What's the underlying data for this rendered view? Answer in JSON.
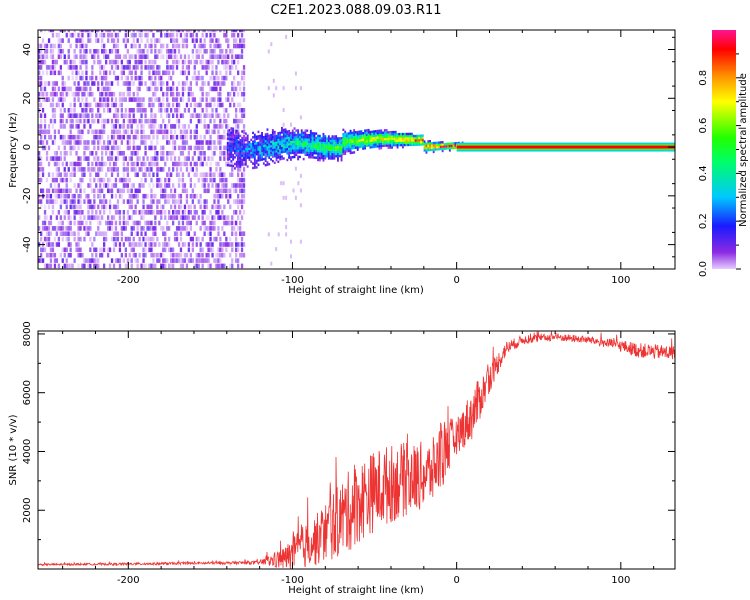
{
  "title": "C2E1.2023.088.09.03.R11",
  "chart_data": [
    {
      "type": "heatmap",
      "xlabel": "Height of straight line (km)",
      "ylabel": "Frequency (Hz)",
      "xlim": [
        -255,
        133
      ],
      "ylim": [
        -50,
        48
      ],
      "xticks": [
        -200,
        -100,
        0,
        100
      ],
      "yticks": [
        40,
        20,
        0,
        -20,
        -40
      ],
      "colorbar": {
        "label": "Normalized spectral amplitude",
        "range": [
          0,
          1
        ],
        "ticks": [
          0.0,
          0.2,
          0.4,
          0.6,
          0.8
        ]
      },
      "noise_region_x": [
        -255,
        -115
      ],
      "signal_onset_x": -140,
      "signal_converges_x": 0,
      "signal_frequency_hz": 0
    },
    {
      "type": "line",
      "xlabel": "Height of straight line (km)",
      "ylabel": "SNR (10 * v/v)",
      "xlim": [
        -255,
        133
      ],
      "ylim": [
        0,
        8100
      ],
      "xticks": [
        -200,
        -100,
        0,
        100
      ],
      "yticks": [
        2000,
        4000,
        6000,
        8000
      ],
      "series": [
        {
          "name": "SNR",
          "color": "#ee3333",
          "x": [
            -255,
            -200,
            -150,
            -120,
            -105,
            -95,
            -85,
            -75,
            -65,
            -55,
            -45,
            -35,
            -25,
            -15,
            -8,
            0,
            10,
            20,
            30,
            40,
            50,
            60,
            70,
            80,
            90,
            100,
            110,
            120,
            133
          ],
          "y": [
            150,
            170,
            200,
            220,
            350,
            700,
            1000,
            1500,
            2000,
            2500,
            2800,
            3000,
            3100,
            3300,
            4000,
            4500,
            5300,
            6500,
            7500,
            7800,
            7850,
            7900,
            7850,
            7800,
            7700,
            7600,
            7450,
            7400,
            7350
          ],
          "spread": [
            30,
            40,
            40,
            60,
            400,
            700,
            900,
            1200,
            1400,
            1400,
            1400,
            1300,
            1200,
            1100,
            1200,
            600,
            900,
            500,
            250,
            150,
            130,
            130,
            130,
            130,
            160,
            200,
            250,
            250,
            250
          ]
        }
      ]
    }
  ]
}
